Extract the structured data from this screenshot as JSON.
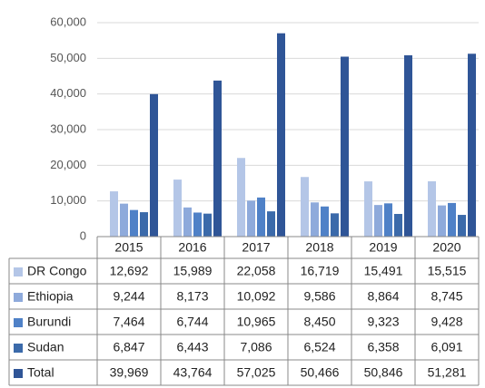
{
  "chart_data": {
    "type": "bar",
    "categories": [
      "2015",
      "2016",
      "2017",
      "2018",
      "2019",
      "2020"
    ],
    "series": [
      {
        "name": "DR Congo",
        "color": "#b4c6e7",
        "values": [
          12692,
          15989,
          22058,
          16719,
          15491,
          15515
        ],
        "value_labels": [
          "12,692",
          "15,989",
          "22,058",
          "16,719",
          "15,491",
          "15,515"
        ]
      },
      {
        "name": "Ethiopia",
        "color": "#8eaadb",
        "values": [
          9244,
          8173,
          10092,
          9586,
          8864,
          8745
        ],
        "value_labels": [
          "9,244",
          "8,173",
          "10,092",
          "9,586",
          "8,864",
          "8,745"
        ]
      },
      {
        "name": "Burundi",
        "color": "#4f81c7",
        "values": [
          7464,
          6744,
          10965,
          8450,
          9323,
          9428
        ],
        "value_labels": [
          "7,464",
          "6,744",
          "10,965",
          "8,450",
          "9,323",
          "9,428"
        ]
      },
      {
        "name": "Sudan",
        "color": "#3b6aaa",
        "values": [
          6847,
          6443,
          7086,
          6524,
          6358,
          6091
        ],
        "value_labels": [
          "6,847",
          "6,443",
          "7,086",
          "6,524",
          "6,358",
          "6,091"
        ]
      },
      {
        "name": "Total",
        "color": "#2f5597",
        "values": [
          39969,
          43764,
          57025,
          50466,
          50846,
          51281
        ],
        "value_labels": [
          "39,969",
          "43,764",
          "57,025",
          "50,466",
          "50,846",
          "51,281"
        ]
      }
    ],
    "ylim": [
      0,
      60000
    ],
    "yticks": [
      0,
      {
        "value": 10000,
        "label": "10,000"
      },
      {
        "value": 20000,
        "label": "20,000"
      },
      {
        "value": 30000,
        "label": "30,000"
      },
      {
        "value": 40000,
        "label": "40,000"
      },
      {
        "value": 50000,
        "label": "50,000"
      },
      {
        "value": 60000,
        "label": "60,000"
      }
    ],
    "grid": true
  }
}
